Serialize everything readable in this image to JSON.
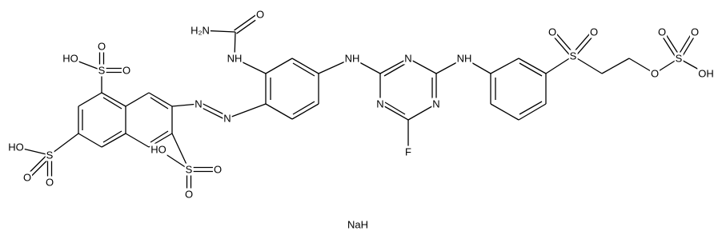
{
  "atoms": [
    "HO",
    "S",
    "O",
    "O",
    "HO",
    "S",
    "O",
    "O",
    "HO",
    "S",
    "O",
    "O",
    "N",
    "N",
    "NH",
    "H₂N",
    "O",
    "NH",
    "N",
    "N",
    "N",
    "F",
    "NH",
    "S",
    "O",
    "O",
    "O",
    "S",
    "O",
    "O",
    "OH"
  ],
  "salt": "NaH"
}
